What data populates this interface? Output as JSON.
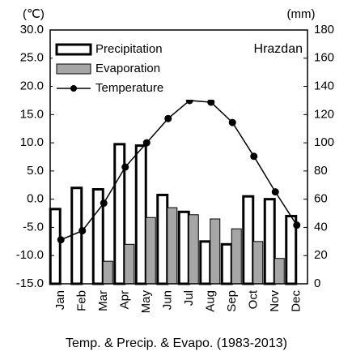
{
  "chart_data": {
    "type": "bar",
    "y_unit_label": "(℃)",
    "y2_unit_label": "(mm)",
    "annotation": "Hrazdan",
    "x_axis_title": "Temp. & Precip. & Evapo. (1983-2013)",
    "categories": [
      "Jan",
      "Feb",
      "Mar",
      "Apr",
      "May",
      "Jun",
      "Jul",
      "Aug",
      "Sep",
      "Oct",
      "Nov",
      "Dec"
    ],
    "series": [
      {
        "name": "Precipitation",
        "type": "bar",
        "axis": "y2",
        "color": "#ffffff",
        "values": [
          53,
          68,
          67,
          99,
          98,
          63,
          51,
          30,
          28,
          62,
          60,
          48
        ]
      },
      {
        "name": "Evaporation",
        "type": "bar",
        "axis": "y2",
        "color": "#a6a6a6",
        "values": [
          null,
          null,
          16,
          28,
          47,
          54,
          49,
          46,
          39,
          30,
          18,
          null
        ]
      },
      {
        "name": "Temperature",
        "type": "line",
        "axis": "y",
        "color": "#000000",
        "values": [
          -7.2,
          -5.6,
          -0.7,
          5.7,
          10.0,
          14.3,
          17.5,
          17.2,
          13.6,
          7.6,
          1.3,
          -4.6
        ]
      }
    ],
    "ylim": [
      -15,
      30
    ],
    "yticks": [
      {
        "value": -15,
        "label": "-15.0"
      },
      {
        "value": -10,
        "label": "-10.0"
      },
      {
        "value": -5,
        "label": "-5.0"
      },
      {
        "value": 0,
        "label": "0.0"
      },
      {
        "value": 5,
        "label": "5.0"
      },
      {
        "value": 10,
        "label": "10.0"
      },
      {
        "value": 15,
        "label": "15.0"
      },
      {
        "value": 20,
        "label": "20.0"
      },
      {
        "value": 25,
        "label": "25.0"
      },
      {
        "value": 30,
        "label": "30.0"
      }
    ],
    "y2lim": [
      0,
      180
    ],
    "y2ticks": [
      0,
      20,
      40,
      60,
      80,
      100,
      120,
      140,
      160,
      180
    ]
  }
}
